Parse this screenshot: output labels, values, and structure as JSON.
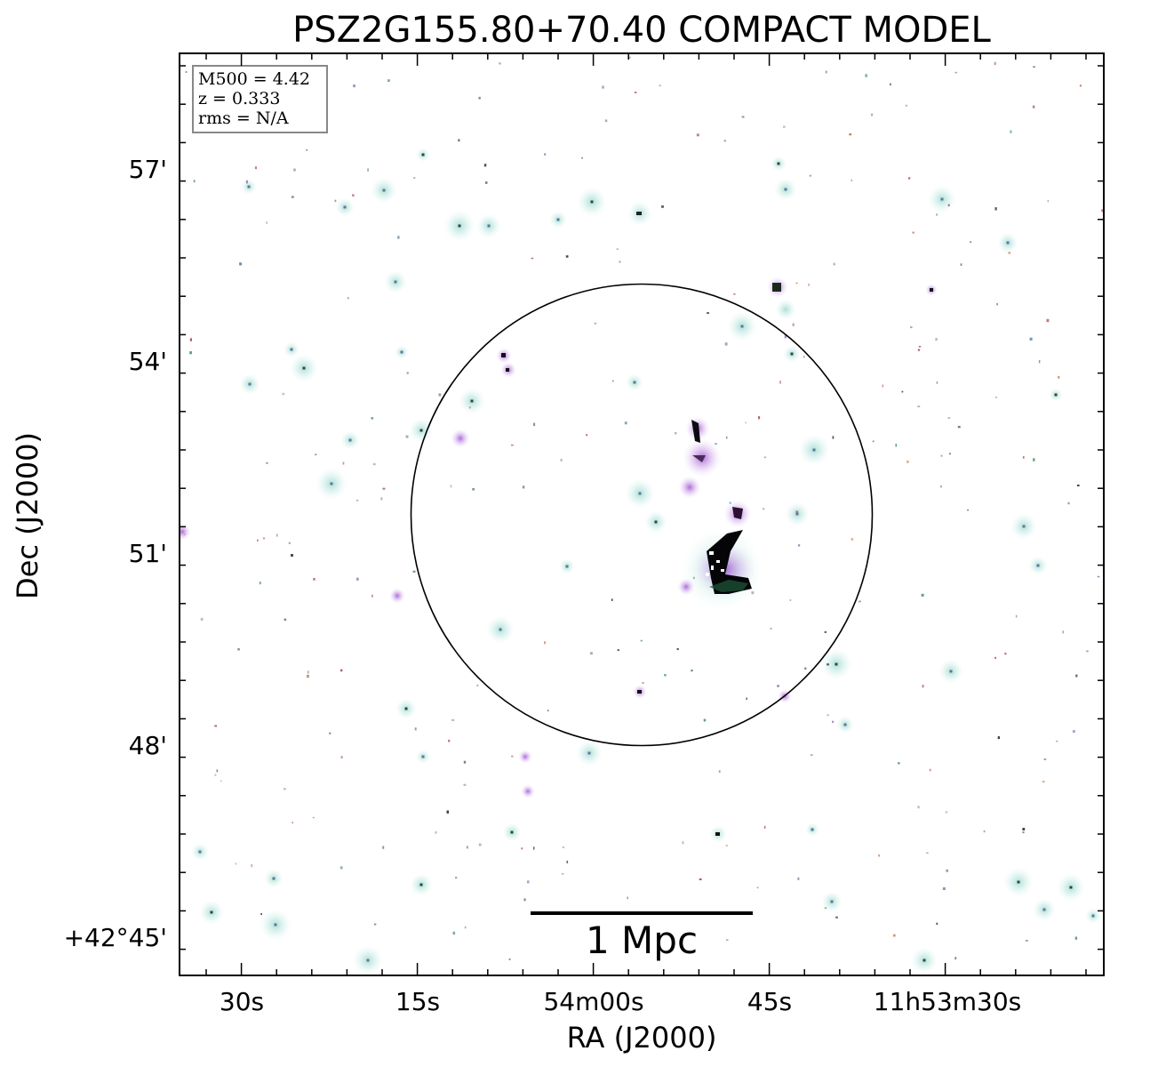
{
  "title": "PSZ2G155.80+70.40 COMPACT MODEL",
  "x_axis_label": "RA (J2000)",
  "y_axis_label": "Dec (J2000)",
  "x_ticks": [
    "30s",
    "15s",
    "54m00s",
    "45s",
    "11h53m30s"
  ],
  "y_ticks": [
    "57'",
    "54'",
    "51'",
    "48'",
    "+42°45'"
  ],
  "info_box": {
    "mass": "M500 = 4.42",
    "redshift": "z = 0.333",
    "rms": "rms = N/A"
  },
  "scale_bar_label": "1 Mpc",
  "colors": {
    "background": "#ffffff",
    "halo": "#b7e3dc",
    "source_magenta": "#c48be0",
    "source_core": "#0b0b18",
    "frame": "#000000"
  }
}
